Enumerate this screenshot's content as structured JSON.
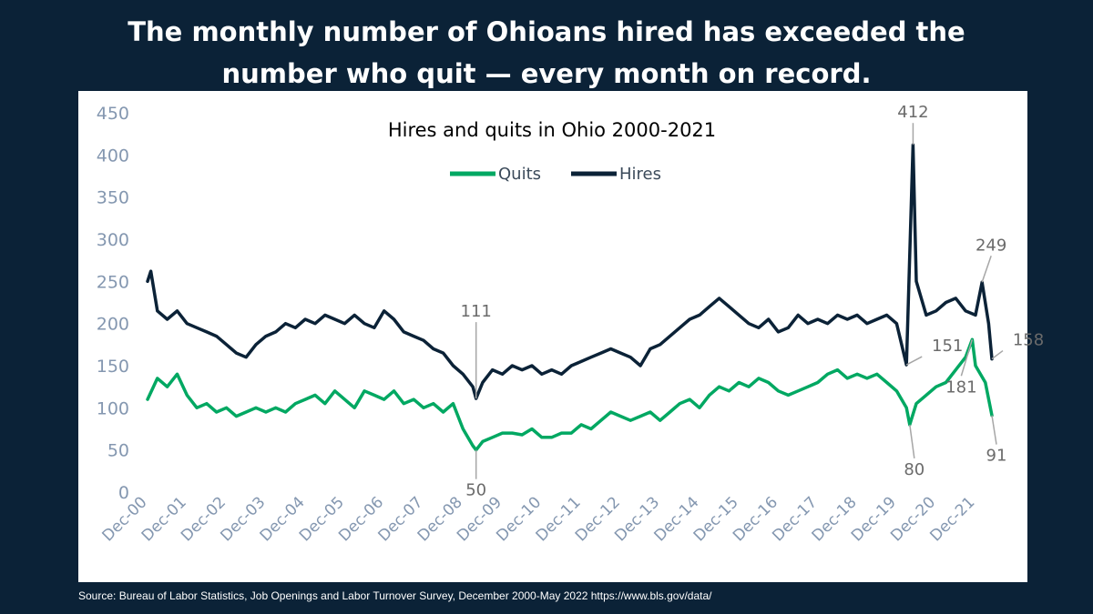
{
  "header": {
    "line1": "The monthly number of Ohioans hired has exceeded the",
    "line2": "number who quit — every month on record."
  },
  "footer": {
    "source": "Source: Bureau of Labor Statistics, Job Openings and Labor Turnover Survey, December 2000-May 2022 https://www.bls.gov/data/"
  },
  "colors": {
    "background": "#0b2237",
    "quits": "#00a862",
    "hires": "#0b2237",
    "axis_text": "#8497b0",
    "annotation": "#a6a6a6"
  },
  "chart_data": {
    "type": "line",
    "title": "Hires and quits in Ohio 2000-2021",
    "xlabel": "",
    "ylabel": "",
    "ylim": [
      0,
      450
    ],
    "yticks": [
      0,
      50,
      100,
      150,
      200,
      250,
      300,
      350,
      400,
      450
    ],
    "xlim": [
      "Dec-00",
      "May-22"
    ],
    "x_tick_labels": [
      "Dec-00",
      "Dec-01",
      "Dec-02",
      "Dec-03",
      "Dec-04",
      "Dec-05",
      "Dec-06",
      "Dec-07",
      "Dec-08",
      "Dec-09",
      "Dec-10",
      "Dec-11",
      "Dec-12",
      "Dec-13",
      "Dec-14",
      "Dec-15",
      "Dec-16",
      "Dec-17",
      "Dec-18",
      "Dec-19",
      "Dec-20",
      "Dec-21"
    ],
    "grid": false,
    "legend_position": "top-center",
    "series": [
      {
        "name": "Quits",
        "color": "#00a862",
        "points": [
          [
            "Dec-00",
            110
          ],
          [
            "Mar-01",
            135
          ],
          [
            "Jun-01",
            125
          ],
          [
            "Sep-01",
            140
          ],
          [
            "Dec-01",
            115
          ],
          [
            "Mar-02",
            100
          ],
          [
            "Jun-02",
            105
          ],
          [
            "Sep-02",
            95
          ],
          [
            "Dec-02",
            100
          ],
          [
            "Mar-03",
            90
          ],
          [
            "Jun-03",
            95
          ],
          [
            "Sep-03",
            100
          ],
          [
            "Dec-03",
            95
          ],
          [
            "Mar-04",
            100
          ],
          [
            "Jun-04",
            95
          ],
          [
            "Sep-04",
            105
          ],
          [
            "Dec-04",
            110
          ],
          [
            "Mar-05",
            115
          ],
          [
            "Jun-05",
            105
          ],
          [
            "Sep-05",
            120
          ],
          [
            "Dec-05",
            110
          ],
          [
            "Mar-06",
            100
          ],
          [
            "Jun-06",
            120
          ],
          [
            "Sep-06",
            115
          ],
          [
            "Dec-06",
            110
          ],
          [
            "Mar-07",
            120
          ],
          [
            "Jun-07",
            105
          ],
          [
            "Sep-07",
            110
          ],
          [
            "Dec-07",
            100
          ],
          [
            "Mar-08",
            105
          ],
          [
            "Jun-08",
            95
          ],
          [
            "Sep-08",
            105
          ],
          [
            "Dec-08",
            75
          ],
          [
            "Mar-09",
            55
          ],
          [
            "Apr-09",
            50
          ],
          [
            "Jun-09",
            60
          ],
          [
            "Sep-09",
            65
          ],
          [
            "Dec-09",
            70
          ],
          [
            "Mar-10",
            70
          ],
          [
            "Jun-10",
            68
          ],
          [
            "Sep-10",
            75
          ],
          [
            "Dec-10",
            65
          ],
          [
            "Mar-11",
            65
          ],
          [
            "Jun-11",
            70
          ],
          [
            "Sep-11",
            70
          ],
          [
            "Dec-11",
            80
          ],
          [
            "Mar-12",
            75
          ],
          [
            "Jun-12",
            85
          ],
          [
            "Sep-12",
            95
          ],
          [
            "Dec-12",
            90
          ],
          [
            "Mar-13",
            85
          ],
          [
            "Jun-13",
            90
          ],
          [
            "Sep-13",
            95
          ],
          [
            "Dec-13",
            85
          ],
          [
            "Mar-14",
            95
          ],
          [
            "Jun-14",
            105
          ],
          [
            "Sep-14",
            110
          ],
          [
            "Dec-14",
            100
          ],
          [
            "Mar-15",
            115
          ],
          [
            "Jun-15",
            125
          ],
          [
            "Sep-15",
            120
          ],
          [
            "Dec-15",
            130
          ],
          [
            "Mar-16",
            125
          ],
          [
            "Jun-16",
            135
          ],
          [
            "Sep-16",
            130
          ],
          [
            "Dec-16",
            120
          ],
          [
            "Mar-17",
            115
          ],
          [
            "Jun-17",
            120
          ],
          [
            "Sep-17",
            125
          ],
          [
            "Dec-17",
            130
          ],
          [
            "Mar-18",
            140
          ],
          [
            "Jun-18",
            145
          ],
          [
            "Sep-18",
            135
          ],
          [
            "Dec-18",
            140
          ],
          [
            "Mar-19",
            135
          ],
          [
            "Jun-19",
            140
          ],
          [
            "Sep-19",
            130
          ],
          [
            "Dec-19",
            120
          ],
          [
            "Mar-20",
            100
          ],
          [
            "Apr-20",
            80
          ],
          [
            "Jun-20",
            105
          ],
          [
            "Sep-20",
            115
          ],
          [
            "Dec-20",
            125
          ],
          [
            "Mar-21",
            130
          ],
          [
            "Jun-21",
            145
          ],
          [
            "Sep-21",
            160
          ],
          [
            "Nov-21",
            181
          ],
          [
            "Dec-21",
            150
          ],
          [
            "Mar-22",
            130
          ],
          [
            "May-22",
            91
          ]
        ]
      },
      {
        "name": "Hires",
        "color": "#0b2237",
        "points": [
          [
            "Dec-00",
            250
          ],
          [
            "Jan-01",
            262
          ],
          [
            "Mar-01",
            215
          ],
          [
            "Jun-01",
            205
          ],
          [
            "Sep-01",
            215
          ],
          [
            "Dec-01",
            200
          ],
          [
            "Mar-02",
            195
          ],
          [
            "Jun-02",
            190
          ],
          [
            "Sep-02",
            185
          ],
          [
            "Dec-02",
            175
          ],
          [
            "Mar-03",
            165
          ],
          [
            "Jun-03",
            160
          ],
          [
            "Sep-03",
            175
          ],
          [
            "Dec-03",
            185
          ],
          [
            "Mar-04",
            190
          ],
          [
            "Jun-04",
            200
          ],
          [
            "Sep-04",
            195
          ],
          [
            "Dec-04",
            205
          ],
          [
            "Mar-05",
            200
          ],
          [
            "Jun-05",
            210
          ],
          [
            "Sep-05",
            205
          ],
          [
            "Dec-05",
            200
          ],
          [
            "Mar-06",
            210
          ],
          [
            "Jun-06",
            200
          ],
          [
            "Sep-06",
            195
          ],
          [
            "Dec-06",
            215
          ],
          [
            "Mar-07",
            205
          ],
          [
            "Jun-07",
            190
          ],
          [
            "Sep-07",
            185
          ],
          [
            "Dec-07",
            180
          ],
          [
            "Mar-08",
            170
          ],
          [
            "Jun-08",
            165
          ],
          [
            "Sep-08",
            150
          ],
          [
            "Dec-08",
            140
          ],
          [
            "Mar-09",
            125
          ],
          [
            "Apr-09",
            111
          ],
          [
            "Jun-09",
            130
          ],
          [
            "Sep-09",
            145
          ],
          [
            "Dec-09",
            140
          ],
          [
            "Mar-10",
            150
          ],
          [
            "Jun-10",
            145
          ],
          [
            "Sep-10",
            150
          ],
          [
            "Dec-10",
            140
          ],
          [
            "Mar-11",
            145
          ],
          [
            "Jun-11",
            140
          ],
          [
            "Sep-11",
            150
          ],
          [
            "Dec-11",
            155
          ],
          [
            "Mar-12",
            160
          ],
          [
            "Jun-12",
            165
          ],
          [
            "Sep-12",
            170
          ],
          [
            "Dec-12",
            165
          ],
          [
            "Mar-13",
            160
          ],
          [
            "Jun-13",
            150
          ],
          [
            "Sep-13",
            170
          ],
          [
            "Dec-13",
            175
          ],
          [
            "Mar-14",
            185
          ],
          [
            "Jun-14",
            195
          ],
          [
            "Sep-14",
            205
          ],
          [
            "Dec-14",
            210
          ],
          [
            "Mar-15",
            220
          ],
          [
            "Jun-15",
            230
          ],
          [
            "Sep-15",
            220
          ],
          [
            "Dec-15",
            210
          ],
          [
            "Mar-16",
            200
          ],
          [
            "Jun-16",
            195
          ],
          [
            "Sep-16",
            205
          ],
          [
            "Dec-16",
            190
          ],
          [
            "Mar-17",
            195
          ],
          [
            "Jun-17",
            210
          ],
          [
            "Sep-17",
            200
          ],
          [
            "Dec-17",
            205
          ],
          [
            "Mar-18",
            200
          ],
          [
            "Jun-18",
            210
          ],
          [
            "Sep-18",
            205
          ],
          [
            "Dec-18",
            210
          ],
          [
            "Mar-19",
            200
          ],
          [
            "Jun-19",
            205
          ],
          [
            "Sep-19",
            210
          ],
          [
            "Dec-19",
            200
          ],
          [
            "Mar-20",
            151
          ],
          [
            "May-20",
            412
          ],
          [
            "Jun-20",
            250
          ],
          [
            "Sep-20",
            210
          ],
          [
            "Dec-20",
            215
          ],
          [
            "Mar-21",
            225
          ],
          [
            "Jun-21",
            230
          ],
          [
            "Sep-21",
            215
          ],
          [
            "Dec-21",
            210
          ],
          [
            "Feb-22",
            249
          ],
          [
            "Apr-22",
            200
          ],
          [
            "May-22",
            158
          ]
        ]
      }
    ],
    "annotations": [
      {
        "series": "Hires",
        "x": "Apr-09",
        "value": 111,
        "label": "111"
      },
      {
        "series": "Quits",
        "x": "Apr-09",
        "value": 50,
        "label": "50"
      },
      {
        "series": "Hires",
        "x": "May-20",
        "value": 412,
        "label": "412"
      },
      {
        "series": "Hires",
        "x": "Mar-20",
        "value": 151,
        "label": "151"
      },
      {
        "series": "Quits",
        "x": "Apr-20",
        "value": 80,
        "label": "80"
      },
      {
        "series": "Hires",
        "x": "Feb-22",
        "value": 249,
        "label": "249"
      },
      {
        "series": "Hires",
        "x": "May-22",
        "value": 158,
        "label": "158"
      },
      {
        "series": "Quits",
        "x": "Nov-21",
        "value": 181,
        "label": "181"
      },
      {
        "series": "Quits",
        "x": "May-22",
        "value": 91,
        "label": "91"
      }
    ]
  }
}
